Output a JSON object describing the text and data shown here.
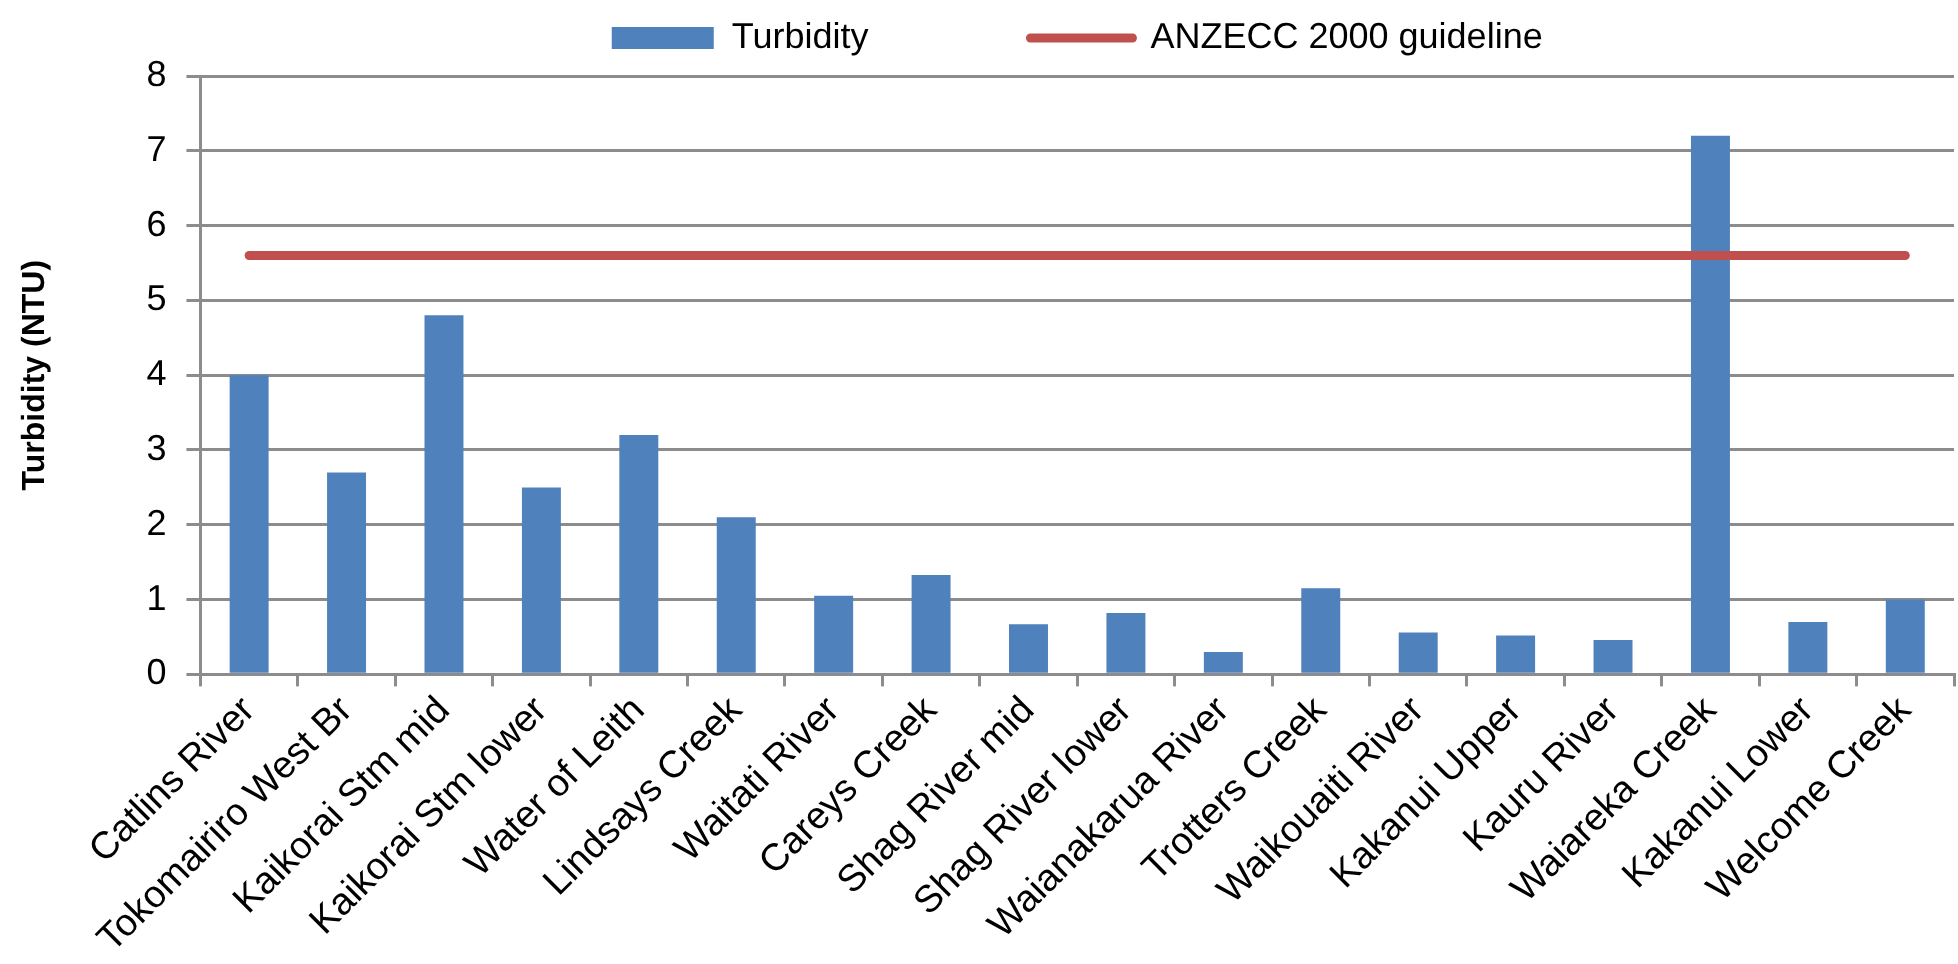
{
  "chart_data": {
    "type": "bar",
    "categories": [
      "Catlins River",
      "Tokomairiro West Br",
      "Kaikorai Stm mid",
      "Kaikorai Stm lower",
      "Water of Leith",
      "Lindsays Creek",
      "Waitati River",
      "Careys Creek",
      "Shag River mid",
      "Shag River lower",
      "Waianakarua River",
      "Trotters Creek",
      "Waikouaiti River",
      "Kakanui Upper",
      "Kauru River",
      "Waiareka Creek",
      "Kakanui Lower",
      "Welcome Creek"
    ],
    "series": [
      {
        "name": "Turbidity",
        "color": "#4f81bd",
        "values": [
          4.0,
          2.7,
          4.8,
          2.5,
          3.2,
          2.1,
          1.05,
          1.33,
          0.67,
          0.82,
          0.3,
          1.15,
          0.56,
          0.52,
          0.46,
          7.2,
          0.7,
          1.0
        ]
      },
      {
        "name": "ANZECC 2000 guideline",
        "type": "line",
        "color": "#c0504d",
        "values": [
          5.6,
          5.6,
          5.6,
          5.6,
          5.6,
          5.6,
          5.6,
          5.6,
          5.6,
          5.6,
          5.6,
          5.6,
          5.6,
          5.6,
          5.6,
          5.6,
          5.6,
          5.6
        ]
      }
    ],
    "ylabel": "Turbidity (NTU)",
    "ylim": [
      0,
      8
    ],
    "yticks": [
      0,
      1,
      2,
      3,
      4,
      5,
      6,
      7,
      8
    ],
    "grid": "y",
    "legend": "top",
    "marker": "none"
  }
}
